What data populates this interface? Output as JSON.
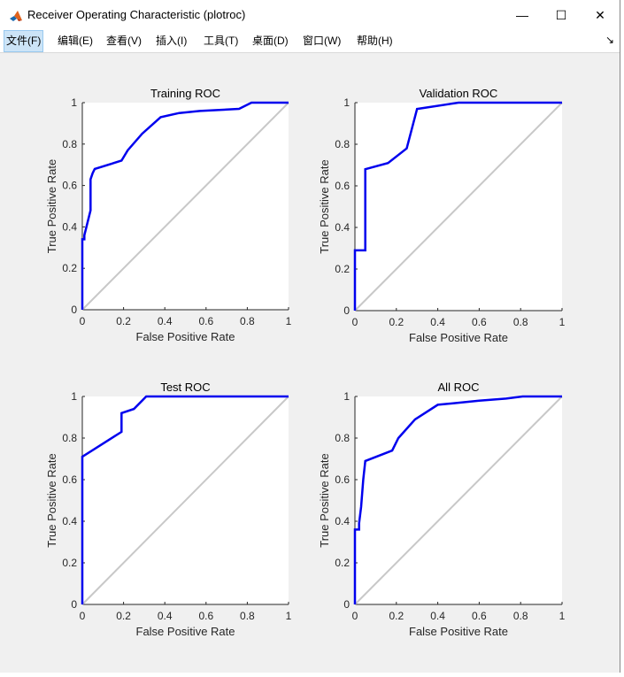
{
  "window": {
    "title": "Receiver Operating Characteristic (plotroc)",
    "controls": {
      "minimize": "—",
      "maximize": "☐",
      "close": "✕"
    }
  },
  "menu": {
    "items": [
      "文件(F)",
      "编辑(E)",
      "查看(V)",
      "插入(I)",
      "工具(T)",
      "桌面(D)",
      "窗口(W)",
      "帮助(H)"
    ],
    "active_index": 0,
    "overflow_icon": "arrow-icon"
  },
  "colors": {
    "roc_line": "#0000ee",
    "diagonal": "#c8c8c8",
    "figure_bg": "#f0f0f0",
    "axes_bg": "#ffffff"
  },
  "chart_data": [
    {
      "type": "line",
      "title": "Training ROC",
      "xlabel": "False Positive Rate",
      "ylabel": "True Positive Rate",
      "xlim": [
        0,
        1
      ],
      "ylim": [
        0,
        1
      ],
      "xticks": [
        "0",
        "0.2",
        "0.4",
        "0.6",
        "0.8",
        "1"
      ],
      "yticks": [
        "0",
        "0.2",
        "0.4",
        "0.6",
        "0.8",
        "1"
      ],
      "diagonal": true,
      "x": [
        0,
        0,
        0.01,
        0.01,
        0.04,
        0.04,
        0.05,
        0.06,
        0.19,
        0.22,
        0.29,
        0.38,
        0.47,
        0.57,
        0.76,
        0.82,
        1
      ],
      "y": [
        0,
        0.34,
        0.34,
        0.36,
        0.48,
        0.63,
        0.66,
        0.68,
        0.72,
        0.77,
        0.85,
        0.93,
        0.95,
        0.96,
        0.97,
        1,
        1
      ]
    },
    {
      "type": "line",
      "title": "Validation ROC",
      "xlabel": "False Positive Rate",
      "ylabel": "True Positive Rate",
      "xlim": [
        0,
        1
      ],
      "ylim": [
        0,
        1
      ],
      "xticks": [
        "0",
        "0.2",
        "0.4",
        "0.6",
        "0.8",
        "1"
      ],
      "yticks": [
        "0",
        "0.2",
        "0.4",
        "0.6",
        "0.8",
        "1"
      ],
      "diagonal": true,
      "x": [
        0,
        0,
        0.05,
        0.05,
        0.16,
        0.25,
        0.3,
        0.5,
        1
      ],
      "y": [
        0,
        0.29,
        0.29,
        0.68,
        0.71,
        0.78,
        0.97,
        1,
        1
      ]
    },
    {
      "type": "line",
      "title": "Test ROC",
      "xlabel": "False Positive Rate",
      "ylabel": "True Positive Rate",
      "xlim": [
        0,
        1
      ],
      "ylim": [
        0,
        1
      ],
      "xticks": [
        "0",
        "0.2",
        "0.4",
        "0.6",
        "0.8",
        "1"
      ],
      "yticks": [
        "0",
        "0.2",
        "0.4",
        "0.6",
        "0.8",
        "1"
      ],
      "diagonal": true,
      "x": [
        0,
        0,
        0.19,
        0.19,
        0.25,
        0.31,
        1
      ],
      "y": [
        0,
        0.71,
        0.83,
        0.92,
        0.94,
        1,
        1
      ]
    },
    {
      "type": "line",
      "title": "All ROC",
      "xlabel": "False Positive Rate",
      "ylabel": "True Positive Rate",
      "xlim": [
        0,
        1
      ],
      "ylim": [
        0,
        1
      ],
      "xticks": [
        "0",
        "0.2",
        "0.4",
        "0.6",
        "0.8",
        "1"
      ],
      "yticks": [
        "0",
        "0.2",
        "0.4",
        "0.6",
        "0.8",
        "1"
      ],
      "diagonal": true,
      "x": [
        0,
        0,
        0.02,
        0.02,
        0.03,
        0.04,
        0.05,
        0.18,
        0.21,
        0.29,
        0.4,
        0.5,
        0.6,
        0.73,
        0.81,
        1
      ],
      "y": [
        0,
        0.36,
        0.36,
        0.39,
        0.47,
        0.6,
        0.69,
        0.74,
        0.8,
        0.89,
        0.96,
        0.97,
        0.98,
        0.99,
        1,
        1
      ]
    }
  ]
}
